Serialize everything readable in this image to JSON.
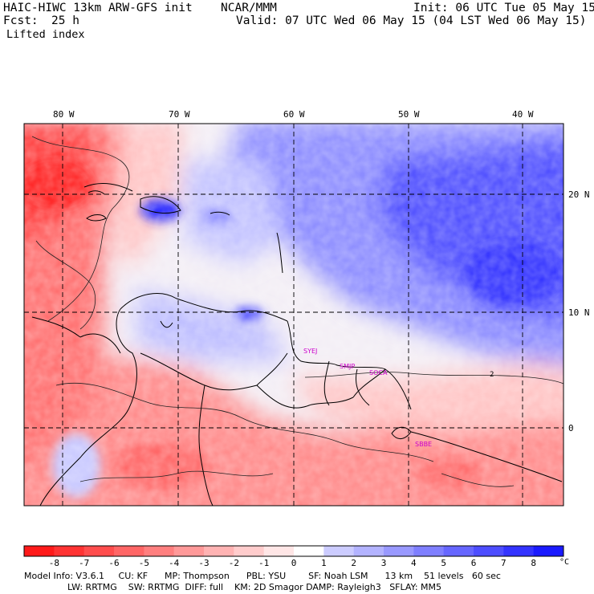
{
  "header": {
    "model": "HAIC-HIWC 13km ARW-GFS init",
    "org": "NCAR/MMM",
    "init": "Init: 06 UTC Tue 05 May 15",
    "fcst_label": "Fcst:",
    "fcst_value": "25 h",
    "valid": "Valid: 07 UTC Wed 06 May 15 (04 LST Wed 06 May 15)",
    "field": "Lifted index"
  },
  "map": {
    "lon_labels": [
      "80 W",
      "70 W",
      "60 W",
      "50 W",
      "40 W"
    ],
    "lat_labels": [
      "20 N",
      "10 N",
      "0"
    ],
    "contour_label": "2",
    "stations": [
      "SYEJ",
      "SMJP",
      "SOCA",
      "SBBE"
    ]
  },
  "colorbar": {
    "ticks": [
      "-8",
      "-7",
      "-6",
      "-5",
      "-4",
      "-3",
      "-2",
      "-1",
      "0",
      "1",
      "2",
      "3",
      "4",
      "5",
      "6",
      "7",
      "8"
    ],
    "unit": "°C",
    "colors": [
      "#ff1a1a",
      "#ff3333",
      "#ff4d4d",
      "#ff6666",
      "#ff7f7f",
      "#ff9999",
      "#ffb3b3",
      "#ffcccc",
      "#ffe6e6",
      "#ffffff",
      "#ccccff",
      "#b3b3ff",
      "#9999ff",
      "#7f7fff",
      "#6666ff",
      "#4d4dff",
      "#3333ff",
      "#1a1aff"
    ]
  },
  "info": {
    "line1": "Model Info: V3.6.1     CU: KF      MP: Thompson      PBL: YSU        SF: Noah LSM      13 km    51 levels   60 sec",
    "line2": "LW: RRTMG    SW: RRTMG  DIFF: full    KM: 2D Smagor DAMP: Rayleigh3   SFLAY: MM5"
  }
}
